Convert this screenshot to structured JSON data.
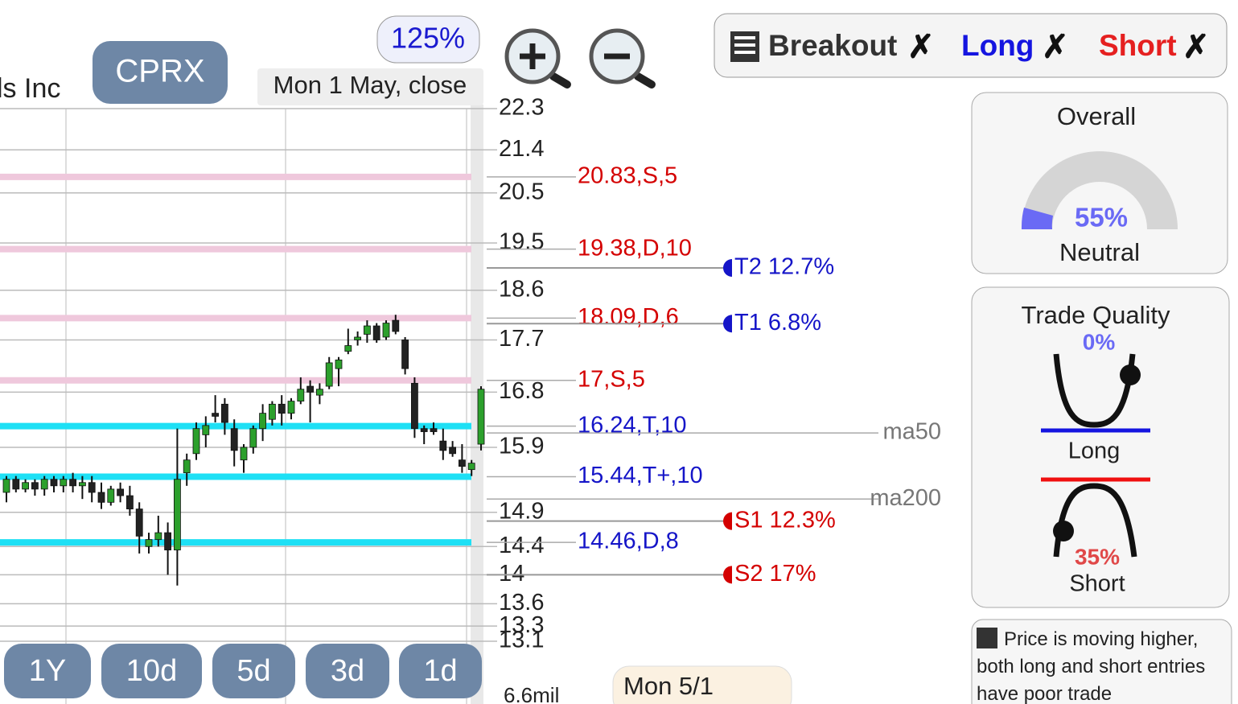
{
  "header": {
    "company": "ls Inc",
    "ticker": "CPRX",
    "zoom": "125%",
    "date": "Mon 1 May, close"
  },
  "toolbar": {
    "breakout": "Breakout",
    "long": "Long",
    "short": "Short",
    "mark": "✗"
  },
  "chart_data": {
    "type": "candlestick",
    "log_scale": true,
    "grid": true,
    "ylim": [
      13.1,
      22.3
    ],
    "yticks": [
      22.3,
      21.4,
      20.5,
      19.5,
      18.6,
      17.7,
      16.8,
      15.9,
      14.9,
      14.4,
      14,
      13.6,
      13.3,
      13.1
    ],
    "up_color": "#2ca02c",
    "down_color": "#222222",
    "open": [
      15.2,
      15.4,
      15.25,
      15.35,
      15.25,
      15.4,
      15.3,
      15.4,
      15.3,
      15.35,
      15.2,
      15.05,
      15.25,
      15.15,
      14.95,
      14.4,
      14.5,
      14.6,
      14.35,
      15.5,
      15.8,
      16.1,
      16.45,
      16.6,
      16.2,
      15.7,
      15.9,
      16.2,
      16.35,
      16.6,
      16.45,
      16.65,
      16.9,
      16.75,
      16.9,
      17.2,
      17.5,
      17.7,
      17.8,
      17.95,
      17.75,
      18.05,
      17.7,
      16.95,
      16.2,
      16.2,
      16.0,
      15.9,
      15.7,
      15.55,
      15.95
    ],
    "high": [
      15.45,
      15.45,
      15.4,
      15.4,
      15.45,
      15.45,
      15.45,
      15.5,
      15.45,
      15.45,
      15.35,
      15.3,
      15.35,
      15.3,
      15.05,
      14.6,
      14.85,
      14.75,
      16.2,
      15.8,
      16.3,
      16.4,
      16.75,
      16.7,
      16.35,
      15.95,
      16.25,
      16.6,
      16.65,
      16.75,
      16.7,
      17.05,
      17.0,
      16.95,
      17.4,
      17.4,
      17.9,
      17.85,
      18.05,
      18.0,
      18.05,
      18.15,
      17.75,
      17.05,
      16.25,
      16.3,
      16.2,
      16.0,
      15.95,
      15.7,
      16.9
    ],
    "low": [
      15.05,
      15.2,
      15.2,
      15.15,
      15.15,
      15.2,
      15.2,
      15.2,
      15.1,
      15.05,
      14.95,
      15.0,
      15.05,
      14.85,
      14.3,
      14.3,
      14.4,
      14.0,
      13.85,
      15.3,
      15.7,
      15.9,
      16.3,
      16.1,
      15.6,
      15.5,
      15.8,
      16.0,
      16.25,
      16.25,
      16.35,
      16.6,
      16.3,
      16.6,
      16.85,
      16.9,
      17.45,
      17.6,
      17.65,
      17.65,
      17.7,
      17.8,
      17.1,
      16.05,
      15.95,
      16.1,
      15.7,
      15.75,
      15.5,
      15.45,
      15.85
    ],
    "close": [
      15.4,
      15.25,
      15.35,
      15.25,
      15.4,
      15.3,
      15.4,
      15.3,
      15.35,
      15.2,
      15.05,
      15.25,
      15.15,
      14.95,
      14.55,
      14.5,
      14.6,
      14.35,
      15.4,
      15.7,
      16.2,
      16.25,
      16.4,
      16.3,
      15.85,
      15.9,
      16.2,
      16.45,
      16.6,
      16.45,
      16.65,
      16.85,
      16.8,
      16.85,
      17.3,
      17.35,
      17.6,
      17.75,
      17.95,
      17.7,
      18.0,
      17.85,
      17.2,
      16.2,
      16.15,
      16.15,
      15.85,
      15.8,
      15.6,
      15.65,
      16.85
    ],
    "levels": [
      {
        "value": 20.83,
        "label": "20.83,S,5",
        "color": "#d40000",
        "band": "#efc8dc"
      },
      {
        "value": 19.38,
        "label": "19.38,D,10",
        "color": "#d40000",
        "band": "#efc8dc"
      },
      {
        "value": 18.09,
        "label": "18.09,D,6",
        "color": "#d40000",
        "band": "#efc8dc"
      },
      {
        "value": 17,
        "label": "17,S,5",
        "color": "#d40000",
        "band": "#efc8dc"
      },
      {
        "value": 16.24,
        "label": "16.24,T,10",
        "color": "#1515c8",
        "band": "#1ee0f5"
      },
      {
        "value": 15.44,
        "label": "15.44,T+,10",
        "color": "#1515c8",
        "band": "#1ee0f5"
      },
      {
        "value": 14.46,
        "label": "14.46,D,8",
        "color": "#1515c8",
        "band": "#1ee0f5"
      }
    ],
    "targets": [
      {
        "price": 19.02,
        "text": "T2 12.7%",
        "color": "#1515c8"
      },
      {
        "price": 17.99,
        "text": "T1 6.8%",
        "color": "#1515c8"
      },
      {
        "price": 14.77,
        "text": "S1 12.3%",
        "color": "#d40000"
      },
      {
        "price": 14.0,
        "text": "S2 17%",
        "color": "#d40000"
      }
    ],
    "moving_averages": [
      {
        "name": "ma50",
        "value": 16.13
      },
      {
        "name": "ma200",
        "value": 15.1
      }
    ],
    "volume_label": "6.6mil",
    "date_label": "Mon 5/1"
  },
  "timeframes": [
    "1Y",
    "10d",
    "5d",
    "3d",
    "1d"
  ],
  "overall": {
    "title": "Overall",
    "value": 55,
    "value_label": "55%",
    "status": "Neutral"
  },
  "trade_quality": {
    "title": "Trade Quality",
    "long": {
      "name": "Long",
      "value": 0,
      "value_label": "0%"
    },
    "short": {
      "name": "Short",
      "value": 35,
      "value_label": "35%"
    }
  },
  "note": "Price is moving higher, both long and short entries have poor trade"
}
